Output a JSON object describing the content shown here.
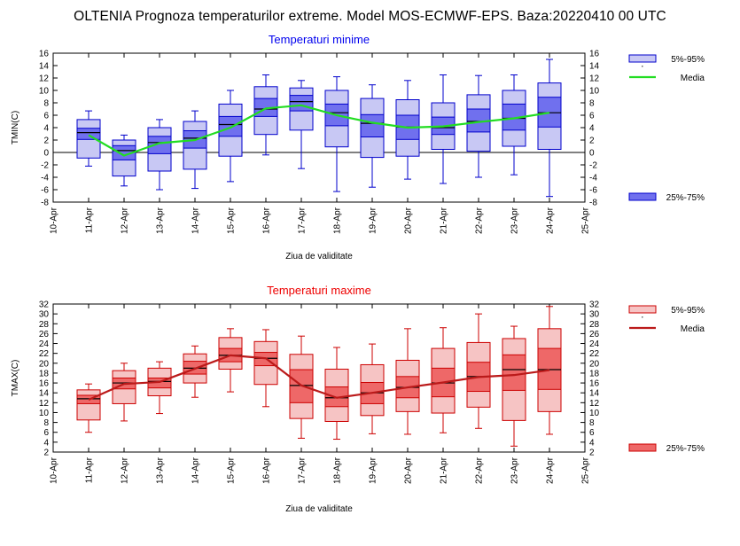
{
  "page": {
    "title": "OLTENIA  Prognoza temperaturilor extreme.  Model MOS-ECMWF-EPS. Baza:20220410 00 UTC"
  },
  "chart_data": [
    {
      "type": "box",
      "id": "tmin",
      "title": "Temperaturi minime",
      "title_color": "#0000ee",
      "ylabel": "TMIN(C)",
      "xlabel": "Ziua de validitate",
      "ylim": [
        -8,
        16
      ],
      "yticks": [
        -8,
        -6,
        -4,
        -2,
        0,
        2,
        4,
        6,
        8,
        10,
        12,
        14,
        16
      ],
      "categories": [
        "10-Apr",
        "11-Apr",
        "12-Apr",
        "13-Apr",
        "14-Apr",
        "15-Apr",
        "16-Apr",
        "17-Apr",
        "18-Apr",
        "19-Apr",
        "20-Apr",
        "21-Apr",
        "22-Apr",
        "23-Apr",
        "24-Apr",
        "25-Apr"
      ],
      "zero_line": true,
      "colors": {
        "outer_fill": "#c8c8f4",
        "inner_fill": "#7070ee",
        "stroke": "#0000cc",
        "mean": "#22dd22"
      },
      "legend": {
        "outer": "5%-95%",
        "mean": "Media",
        "inner": "25%-75%"
      },
      "boxes": [
        {
          "date": "11-Apr",
          "min": -2.2,
          "p5": -0.9,
          "p25": 2.1,
          "median": 3.2,
          "p75": 3.9,
          "p95": 5.3,
          "max": 6.7,
          "mean": 2.8
        },
        {
          "date": "12-Apr",
          "min": -5.4,
          "p5": -3.8,
          "p25": -1.2,
          "median": 0.3,
          "p75": 1.1,
          "p95": 2.0,
          "max": 2.8,
          "mean": -0.5
        },
        {
          "date": "13-Apr",
          "min": -6.0,
          "p5": -3.0,
          "p25": -0.2,
          "median": 1.6,
          "p75": 2.6,
          "p95": 4.0,
          "max": 5.3,
          "mean": 1.5
        },
        {
          "date": "14-Apr",
          "min": -5.8,
          "p5": -2.7,
          "p25": 0.7,
          "median": 2.3,
          "p75": 3.5,
          "p95": 5.0,
          "max": 6.7,
          "mean": 2.0
        },
        {
          "date": "15-Apr",
          "min": -4.7,
          "p5": -0.6,
          "p25": 2.6,
          "median": 4.5,
          "p75": 5.8,
          "p95": 7.8,
          "max": 10.0,
          "mean": 4.0
        },
        {
          "date": "16-Apr",
          "min": -0.4,
          "p5": 2.9,
          "p25": 5.8,
          "median": 7.0,
          "p75": 8.7,
          "p95": 10.6,
          "max": 12.5,
          "mean": 7.1
        },
        {
          "date": "17-Apr",
          "min": -2.6,
          "p5": 3.6,
          "p25": 6.7,
          "median": 8.2,
          "p75": 9.2,
          "p95": 10.4,
          "max": 11.6,
          "mean": 7.6
        },
        {
          "date": "18-Apr",
          "min": -6.3,
          "p5": 0.9,
          "p25": 4.3,
          "median": 6.4,
          "p75": 7.8,
          "p95": 10.0,
          "max": 12.2,
          "mean": 6.0
        },
        {
          "date": "19-Apr",
          "min": -5.6,
          "p5": -0.8,
          "p25": 2.5,
          "median": 4.7,
          "p75": 6.1,
          "p95": 8.7,
          "max": 10.9,
          "mean": 4.8
        },
        {
          "date": "20-Apr",
          "min": -4.3,
          "p5": -0.6,
          "p25": 2.1,
          "median": 4.1,
          "p75": 6.0,
          "p95": 8.5,
          "max": 11.6,
          "mean": 4.0
        },
        {
          "date": "21-Apr",
          "min": -5.0,
          "p5": 0.5,
          "p25": 2.9,
          "median": 4.0,
          "p75": 5.7,
          "p95": 8.0,
          "max": 12.5,
          "mean": 4.2
        },
        {
          "date": "22-Apr",
          "min": -4.0,
          "p5": 0.2,
          "p25": 3.3,
          "median": 5.0,
          "p75": 7.0,
          "p95": 9.3,
          "max": 12.4,
          "mean": 4.9
        },
        {
          "date": "23-Apr",
          "min": -3.6,
          "p5": 1.0,
          "p25": 3.6,
          "median": 5.5,
          "p75": 7.8,
          "p95": 10.0,
          "max": 12.5,
          "mean": 5.5
        },
        {
          "date": "24-Apr",
          "min": -7.1,
          "p5": 0.5,
          "p25": 4.1,
          "median": 6.4,
          "p75": 8.9,
          "p95": 11.2,
          "max": 15.0,
          "mean": 6.4
        }
      ]
    },
    {
      "type": "box",
      "id": "tmax",
      "title": "Temperaturi maxime",
      "title_color": "#ee0000",
      "ylabel": "TMAX(C)",
      "xlabel": "Ziua de validitate",
      "ylim": [
        2,
        32
      ],
      "yticks": [
        2,
        4,
        6,
        8,
        10,
        12,
        14,
        16,
        18,
        20,
        22,
        24,
        26,
        28,
        30,
        32
      ],
      "categories": [
        "10-Apr",
        "11-Apr",
        "12-Apr",
        "13-Apr",
        "14-Apr",
        "15-Apr",
        "16-Apr",
        "17-Apr",
        "18-Apr",
        "19-Apr",
        "20-Apr",
        "21-Apr",
        "22-Apr",
        "23-Apr",
        "24-Apr",
        "25-Apr"
      ],
      "zero_line": false,
      "colors": {
        "outer_fill": "#f6c4c4",
        "inner_fill": "#ee6868",
        "stroke": "#cc0000",
        "mean": "#bb1a1a"
      },
      "legend": {
        "outer": "5%-95%",
        "mean": "Media",
        "inner": "25%-75%"
      },
      "boxes": [
        {
          "date": "11-Apr",
          "min": 6.0,
          "p5": 8.5,
          "p25": 11.8,
          "median": 12.8,
          "p75": 13.5,
          "p95": 14.6,
          "max": 15.8,
          "mean": 12.6
        },
        {
          "date": "12-Apr",
          "min": 8.3,
          "p5": 11.8,
          "p25": 14.8,
          "median": 16.0,
          "p75": 17.0,
          "p95": 18.5,
          "max": 20.0,
          "mean": 15.8
        },
        {
          "date": "13-Apr",
          "min": 9.8,
          "p5": 13.4,
          "p25": 15.0,
          "median": 16.3,
          "p75": 17.0,
          "p95": 19.0,
          "max": 20.3,
          "mean": 16.2
        },
        {
          "date": "14-Apr",
          "min": 13.1,
          "p5": 16.0,
          "p25": 17.8,
          "median": 19.0,
          "p75": 20.4,
          "p95": 21.9,
          "max": 23.5,
          "mean": 18.9
        },
        {
          "date": "15-Apr",
          "min": 14.2,
          "p5": 18.8,
          "p25": 20.3,
          "median": 21.6,
          "p75": 23.0,
          "p95": 25.2,
          "max": 27.0,
          "mean": 21.6
        },
        {
          "date": "16-Apr",
          "min": 11.2,
          "p5": 15.7,
          "p25": 19.5,
          "median": 21.0,
          "p75": 22.2,
          "p95": 24.4,
          "max": 26.8,
          "mean": 21.0
        },
        {
          "date": "17-Apr",
          "min": 4.8,
          "p5": 8.8,
          "p25": 12.0,
          "median": 15.5,
          "p75": 18.7,
          "p95": 21.8,
          "max": 25.5,
          "mean": 15.5
        },
        {
          "date": "18-Apr",
          "min": 4.6,
          "p5": 8.2,
          "p25": 11.2,
          "median": 13.0,
          "p75": 15.2,
          "p95": 18.8,
          "max": 23.2,
          "mean": 13.0
        },
        {
          "date": "19-Apr",
          "min": 5.7,
          "p5": 9.4,
          "p25": 11.8,
          "median": 14.0,
          "p75": 16.1,
          "p95": 19.7,
          "max": 23.9,
          "mean": 14.0
        },
        {
          "date": "20-Apr",
          "min": 5.6,
          "p5": 10.2,
          "p25": 13.0,
          "median": 15.1,
          "p75": 17.3,
          "p95": 20.6,
          "max": 27.0,
          "mean": 15.1
        },
        {
          "date": "21-Apr",
          "min": 5.9,
          "p5": 9.9,
          "p25": 13.2,
          "median": 16.0,
          "p75": 19.0,
          "p95": 23.0,
          "max": 27.2,
          "mean": 16.1
        },
        {
          "date": "22-Apr",
          "min": 6.8,
          "p5": 11.1,
          "p25": 14.3,
          "median": 17.3,
          "p75": 20.2,
          "p95": 24.2,
          "max": 30.0,
          "mean": 17.2
        },
        {
          "date": "23-Apr",
          "min": 3.2,
          "p5": 8.4,
          "p25": 14.5,
          "median": 18.7,
          "p75": 21.7,
          "p95": 25.0,
          "max": 27.5,
          "mean": 17.6
        },
        {
          "date": "24-Apr",
          "min": 5.6,
          "p5": 10.2,
          "p25": 14.7,
          "median": 18.7,
          "p75": 23.0,
          "p95": 27.0,
          "max": 31.5,
          "mean": 18.6
        }
      ]
    }
  ]
}
